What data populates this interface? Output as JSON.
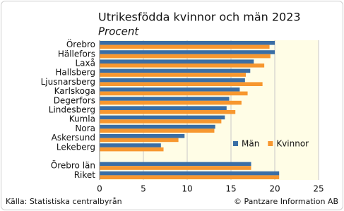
{
  "chart_data": {
    "type": "hbar",
    "title": "Utrikesfödda kvinnor och män 2023",
    "subtitle": "Procent",
    "categories": [
      "Örebro",
      "Hällefors",
      "Laxå",
      "Hallsberg",
      "Ljusnarsberg",
      "Karlskoga",
      "Degerfors",
      "Lindesberg",
      "Kumla",
      "Nora",
      "Askersund",
      "Lekeberg",
      null,
      "Örebro län",
      "Riket"
    ],
    "series": [
      {
        "name": "Män",
        "color": "#3a6ea5",
        "values": [
          20.0,
          20.0,
          17.6,
          17.2,
          16.6,
          16.0,
          14.8,
          14.5,
          14.3,
          13.2,
          9.7,
          7.0,
          null,
          17.3,
          20.5
        ]
      },
      {
        "name": "Kvinnor",
        "color": "#f7972f",
        "values": [
          19.4,
          19.5,
          18.8,
          16.7,
          18.6,
          16.9,
          16.2,
          15.5,
          13.9,
          13.1,
          9.0,
          7.3,
          null,
          17.3,
          20.5
        ]
      }
    ],
    "xlim": [
      0,
      25
    ],
    "xticks": [
      0,
      5,
      10,
      15,
      20,
      25
    ],
    "grid": true,
    "legend": "right",
    "source": "Källa: Statistiska centralbyrån",
    "credit": "© Pantzare Information AB"
  }
}
